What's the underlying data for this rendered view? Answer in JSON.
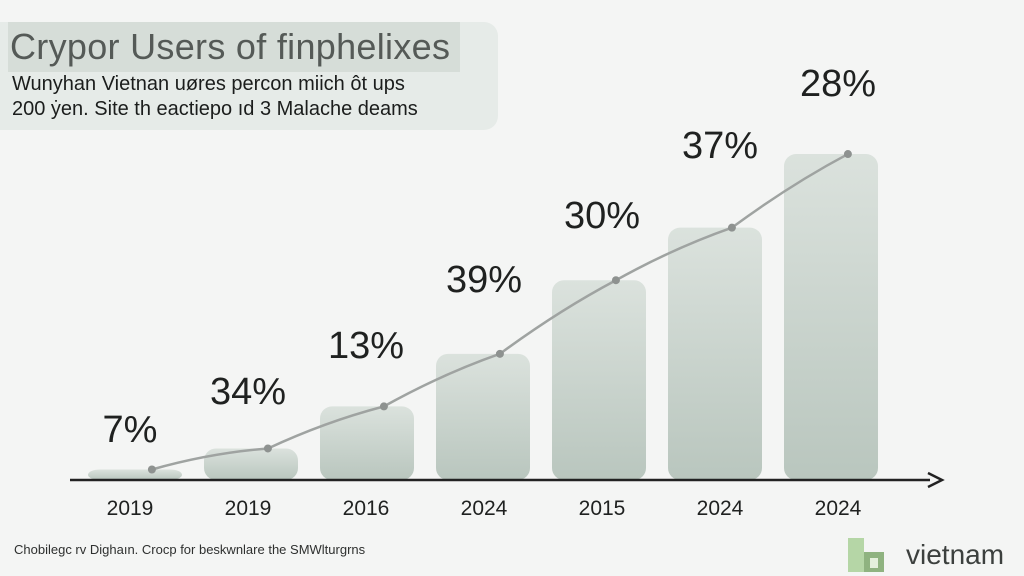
{
  "header": {
    "title": "Crypor Users of finphelixes",
    "subtitle_lines": [
      "Wunyhan Vietnan uøres percon miich ôt ups",
      "200 ẏen. Site th eactiepo ıd 3 Malache deams"
    ]
  },
  "footer": {
    "note": "Chobilegc rv Dighaın. Crocp for beskwnlare the SMWlturgrns",
    "brand": "vietnam"
  },
  "colors": {
    "bar_top": "#dbe2dd",
    "bar_bottom": "#b9c6be",
    "trend_line": "#9fa3a1",
    "axis": "#222222"
  },
  "chart_data": {
    "type": "bar",
    "categories": [
      "2019",
      "2019",
      "2016",
      "2024",
      "2015",
      "2024",
      "2024"
    ],
    "values": [
      1,
      3,
      7,
      12,
      19,
      24,
      31
    ],
    "data_labels": [
      "7%",
      "34%",
      "13%",
      "39%",
      "30%",
      "37%",
      "28%"
    ],
    "title": "Crypor Users of finphelixes",
    "subtitle": "Wunyhan Vietnan uøres percon miich ôt ups 200 ẏen. Site th eactiepo ıd 3 Malache deams",
    "trend_line": true,
    "ylim": [
      0,
      35
    ],
    "grid": false,
    "legend": "none"
  }
}
